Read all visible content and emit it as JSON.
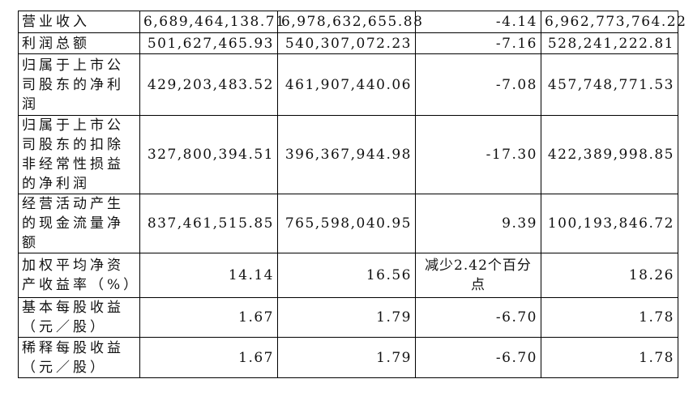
{
  "table": {
    "rows": [
      [
        "营业收入",
        "6,689,464,138.71",
        "6,978,632,655.88",
        "-4.14",
        "6,962,773,764.22"
      ],
      [
        "利润总额",
        "501,627,465.93",
        "540,307,072.23",
        "-7.16",
        "528,241,222.81"
      ],
      [
        "归属于上市公司股东的净利润",
        "429,203,483.52",
        "461,907,440.06",
        "-7.08",
        "457,748,771.53"
      ],
      [
        "归属于上市公司股东的扣除非经常性损益的净利润",
        "327,800,394.51",
        "396,367,944.98",
        "-17.30",
        "422,389,998.85"
      ],
      [
        "经营活动产生的现金流量净额",
        "837,461,515.85",
        "765,598,040.95",
        "9.39",
        "100,193,846.72"
      ],
      [
        "加权平均净资产收益率（%）",
        "14.14",
        "16.56",
        "减少2.42个百分点",
        "18.26"
      ],
      [
        "基本每股收益（元／股）",
        "1.67",
        "1.79",
        "-6.70",
        "1.78"
      ],
      [
        "稀释每股收益（元／股）",
        "1.67",
        "1.79",
        "-6.70",
        "1.78"
      ]
    ]
  }
}
